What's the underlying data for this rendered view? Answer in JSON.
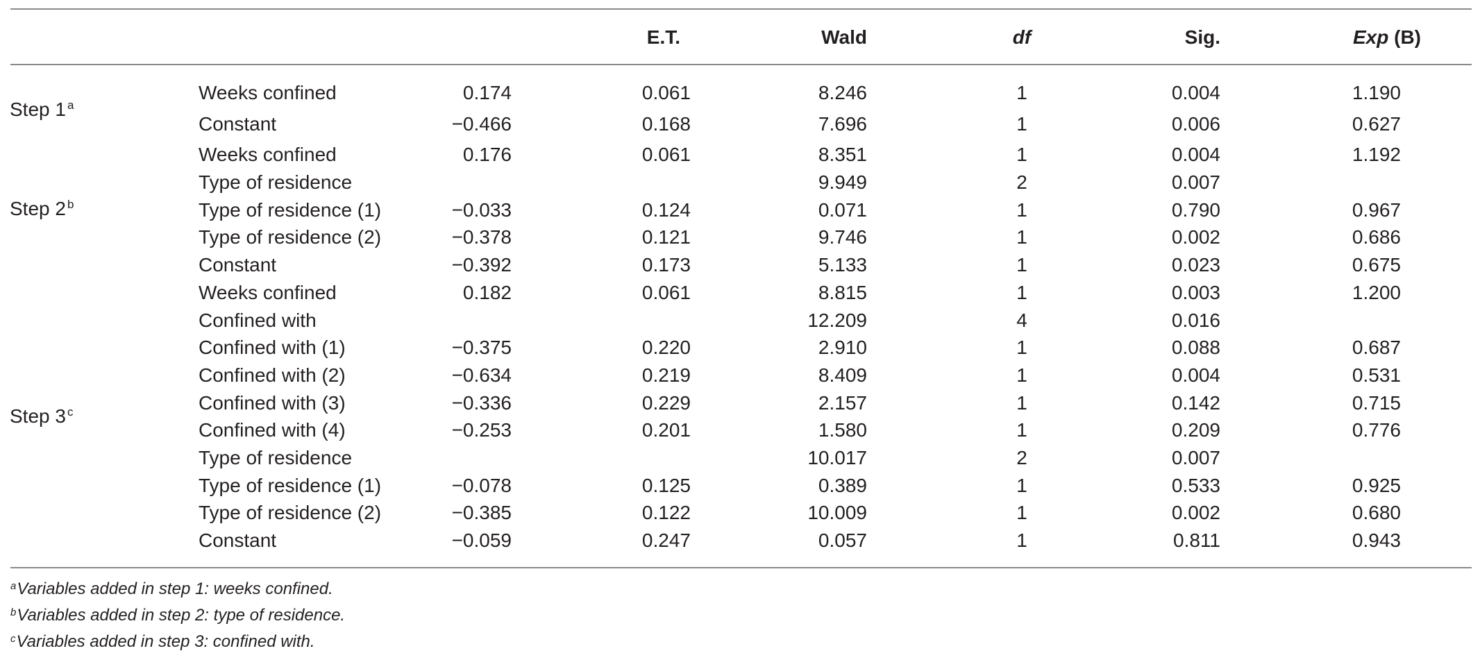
{
  "header": {
    "et": "E.T.",
    "wald": "Wald",
    "df": "df",
    "sig": "Sig.",
    "exp_b": "Exp",
    "exp_b_paren": "(B)"
  },
  "steps": [
    {
      "label": "Step 1",
      "sup": "a"
    },
    {
      "label": "Step 2",
      "sup": "b"
    },
    {
      "label": "Step 3",
      "sup": "c"
    }
  ],
  "rows": [
    {
      "variable": "Weeks confined",
      "b": "0.174",
      "et": "0.061",
      "wald": "8.246",
      "df": "1",
      "sig": "0.004",
      "exp": "1.190"
    },
    {
      "variable": "Constant",
      "b": "−0.466",
      "et": "0.168",
      "wald": "7.696",
      "df": "1",
      "sig": "0.006",
      "exp": "0.627"
    },
    {
      "variable": "Weeks confined",
      "b": "0.176",
      "et": "0.061",
      "wald": "8.351",
      "df": "1",
      "sig": "0.004",
      "exp": "1.192"
    },
    {
      "variable": "Type of residence",
      "b": "",
      "et": "",
      "wald": "9.949",
      "df": "2",
      "sig": "0.007",
      "exp": ""
    },
    {
      "variable": "Type of residence (1)",
      "b": "−0.033",
      "et": "0.124",
      "wald": "0.071",
      "df": "1",
      "sig": "0.790",
      "exp": "0.967"
    },
    {
      "variable": "Type of residence (2)",
      "b": "−0.378",
      "et": "0.121",
      "wald": "9.746",
      "df": "1",
      "sig": "0.002",
      "exp": "0.686"
    },
    {
      "variable": "Constant",
      "b": "−0.392",
      "et": "0.173",
      "wald": "5.133",
      "df": "1",
      "sig": "0.023",
      "exp": "0.675"
    },
    {
      "variable": "Weeks confined",
      "b": "0.182",
      "et": "0.061",
      "wald": "8.815",
      "df": "1",
      "sig": "0.003",
      "exp": "1.200"
    },
    {
      "variable": "Confined with",
      "b": "",
      "et": "",
      "wald": "12.209",
      "df": "4",
      "sig": "0.016",
      "exp": ""
    },
    {
      "variable": "Confined with (1)",
      "b": "−0.375",
      "et": "0.220",
      "wald": "2.910",
      "df": "1",
      "sig": "0.088",
      "exp": "0.687"
    },
    {
      "variable": "Confined with (2)",
      "b": "−0.634",
      "et": "0.219",
      "wald": "8.409",
      "df": "1",
      "sig": "0.004",
      "exp": "0.531"
    },
    {
      "variable": "Confined with (3)",
      "b": "−0.336",
      "et": "0.229",
      "wald": "2.157",
      "df": "1",
      "sig": "0.142",
      "exp": "0.715"
    },
    {
      "variable": "Confined with (4)",
      "b": "−0.253",
      "et": "0.201",
      "wald": "1.580",
      "df": "1",
      "sig": "0.209",
      "exp": "0.776"
    },
    {
      "variable": "Type of residence",
      "b": "",
      "et": "",
      "wald": "10.017",
      "df": "2",
      "sig": "0.007",
      "exp": ""
    },
    {
      "variable": "Type of residence (1)",
      "b": "−0.078",
      "et": "0.125",
      "wald": "0.389",
      "df": "1",
      "sig": "0.533",
      "exp": "0.925"
    },
    {
      "variable": "Type of residence (2)",
      "b": "−0.385",
      "et": "0.122",
      "wald": "10.009",
      "df": "1",
      "sig": "0.002",
      "exp": "0.680"
    },
    {
      "variable": "Constant",
      "b": "−0.059",
      "et": "0.247",
      "wald": "0.057",
      "df": "1",
      "sig": "0.811",
      "exp": "0.943"
    }
  ],
  "footnotes": [
    {
      "sup": "a",
      "text": "Variables added in step 1: weeks confined."
    },
    {
      "sup": "b",
      "text": "Variables added in step 2: type of residence."
    },
    {
      "sup": "c",
      "text": "Variables added in step 3: confined with."
    }
  ]
}
